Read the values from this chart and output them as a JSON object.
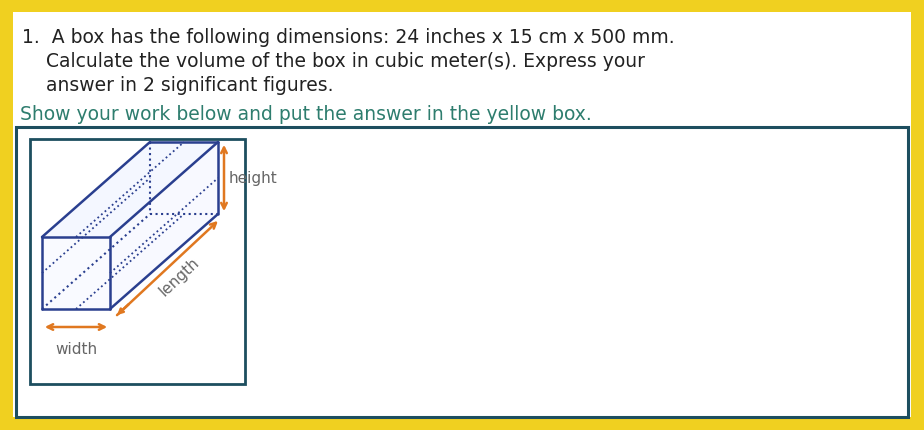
{
  "background_color": "#f0d020",
  "white_box_color": "#ffffff",
  "border_color": "#1d4e5f",
  "question_line1": "1.  A box has the following dimensions: 24 inches x 15 cm x 500 mm.",
  "question_line2": "    Calculate the volume of the box in cubic meter(s). Express your",
  "question_line3": "    answer in 2 significant figures.",
  "instruction_text": "Show your work below and put the answer in the yellow box.",
  "instruction_color": "#2e7d6e",
  "text_color": "#222222",
  "font_size_question": 13.5,
  "font_size_instruction": 13.5,
  "box_label_height": "height",
  "box_label_length": "length",
  "box_label_width": "width",
  "label_color": "#666666",
  "arrow_color": "#e07820",
  "box_edge_color": "#2a3f8f",
  "inner_box_bg": "#ffffff",
  "work_area_border": "#1d4e5f"
}
